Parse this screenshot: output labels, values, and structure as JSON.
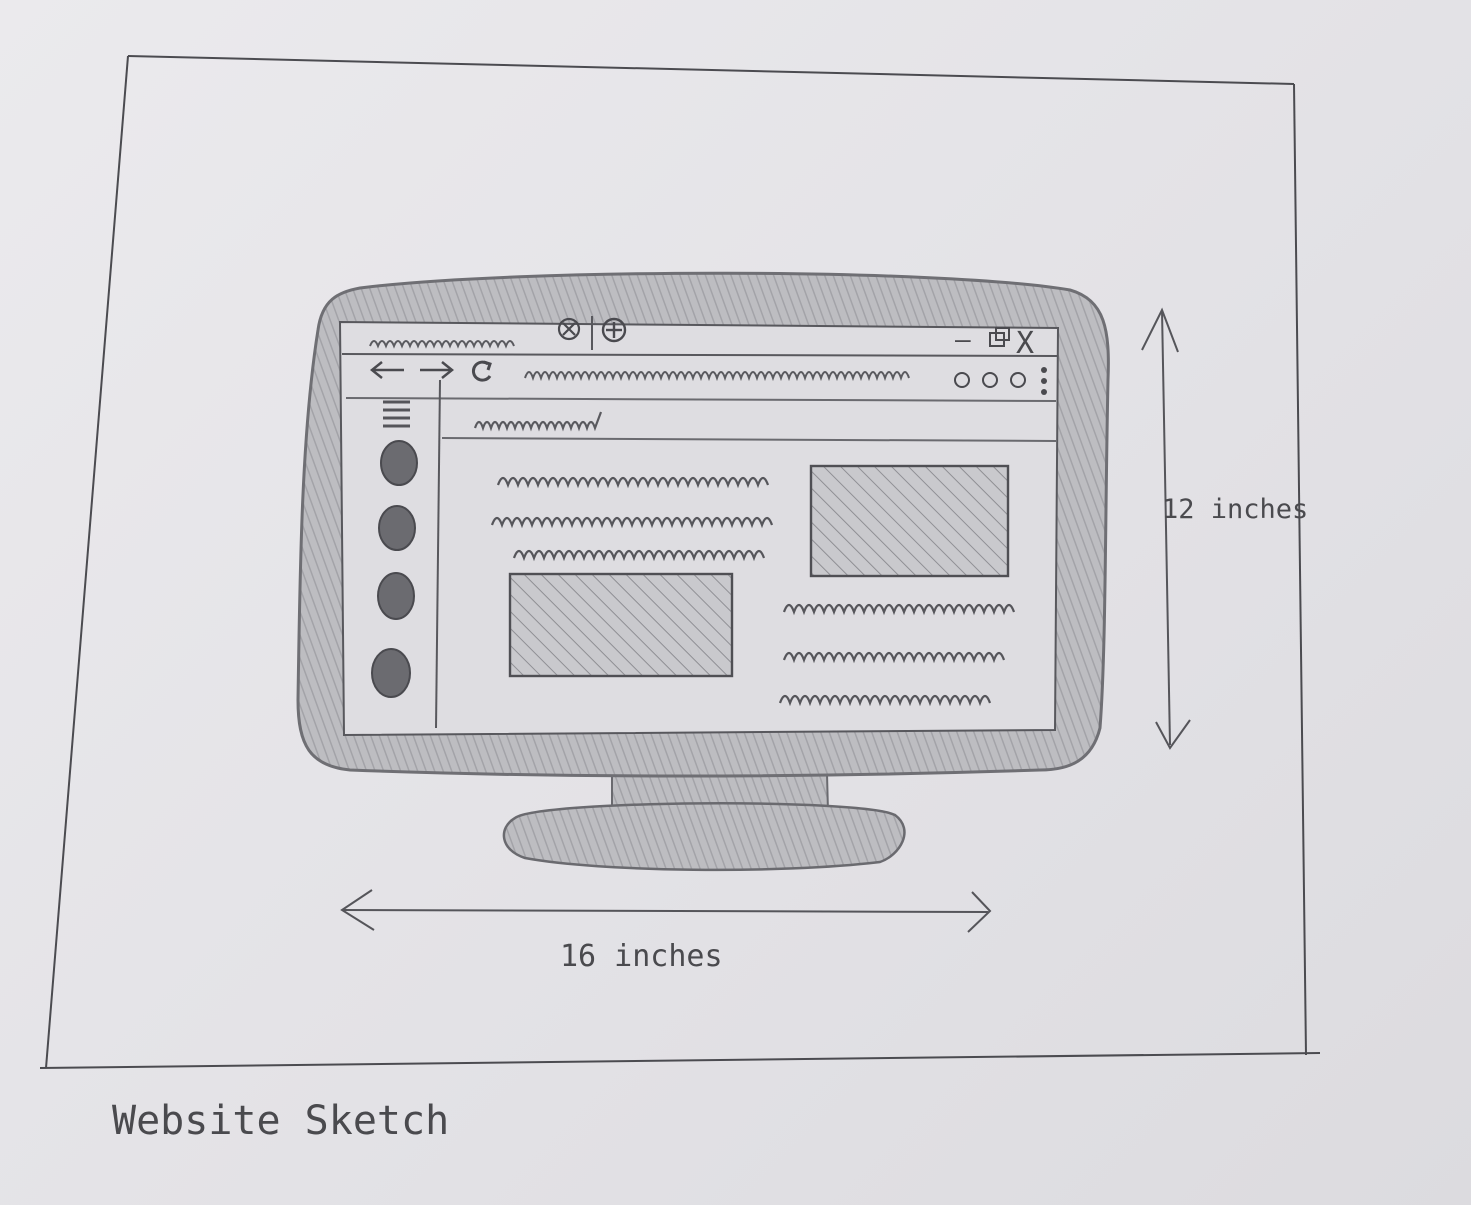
{
  "caption": "Website Sketch",
  "dimensions": {
    "width_label": "16 inches",
    "height_label": "12 inches"
  },
  "browser": {
    "window_controls": {
      "minimize_glyph": "–",
      "close_glyph": "X"
    },
    "toolbar": {
      "menu_dots_count": 3
    }
  },
  "sidebar": {
    "circle_items_count": 4
  },
  "colors": {
    "paper": "#e6e5e8",
    "pencil": "#555559",
    "shading": "#a7a7ab",
    "monitor_frame": "#b9b9bd"
  }
}
